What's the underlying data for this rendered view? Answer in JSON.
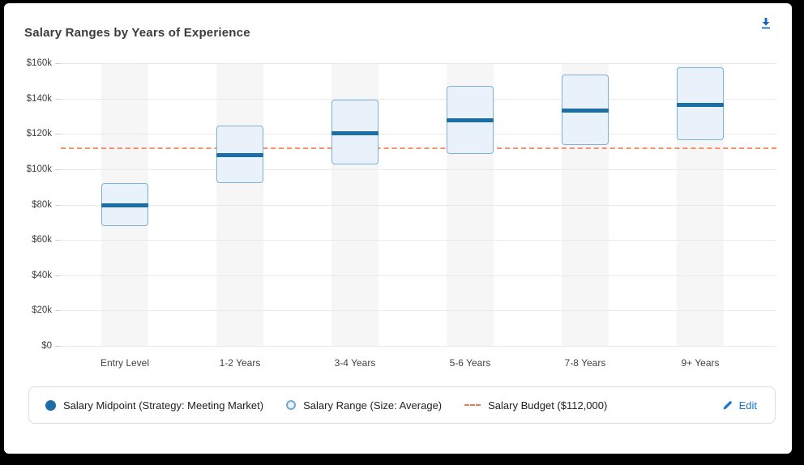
{
  "card": {
    "title": "Salary Ranges by Years of Experience"
  },
  "icons": {
    "download": "download-icon",
    "pencil": "pencil-icon"
  },
  "chart_data": {
    "type": "columnrange",
    "title": "Salary Ranges by Years of Experience",
    "categories": [
      "Entry Level",
      "1-2 Years",
      "3-4 Years",
      "5-6 Years",
      "7-8 Years",
      "9+ Years"
    ],
    "series": [
      {
        "name": "Salary Midpoint (Strategy: Meeting Market)",
        "type": "midpoint",
        "values": [
          80000,
          108500,
          121000,
          128000,
          133500,
          137000
        ],
        "color": "#1b6fa5"
      },
      {
        "name": "Salary Range (Size: Average)",
        "type": "range",
        "ranges": [
          [
            68000,
            92000
          ],
          [
            92200,
            124800
          ],
          [
            102900,
            139200
          ],
          [
            108800,
            147200
          ],
          [
            113500,
            153500
          ],
          [
            116500,
            157500
          ]
        ],
        "fill": "#e9f2fb",
        "border": "#7fb0d6"
      },
      {
        "name": "Salary Budget ($112,000)",
        "type": "line",
        "value": 112000,
        "style": "dashed",
        "color": "#ed7d4f"
      }
    ],
    "yticks": {
      "values": [
        0,
        20000,
        40000,
        60000,
        80000,
        100000,
        120000,
        140000,
        160000
      ],
      "labels": [
        "$0",
        "$20k",
        "$40k",
        "$60k",
        "$80k",
        "$100k",
        "$120k",
        "$140k",
        "$160k"
      ]
    },
    "ylim": [
      0,
      160000
    ],
    "grid": true,
    "legend_position": "bottom"
  },
  "legend": {
    "items": [
      {
        "label": "Salary Midpoint (Strategy: Meeting Market)",
        "icon": "filled-circle",
        "color": "#1b6fa5"
      },
      {
        "label": "Salary Range (Size: Average)",
        "icon": "outlined-circle",
        "fill": "#e9f2fb",
        "border": "#6ea9d4"
      },
      {
        "label": "Salary Budget ($112,000)",
        "icon": "dashed-line",
        "color": "#ed7d4f"
      }
    ],
    "edit_label": "Edit"
  },
  "colors": {
    "midpoint": "#1b6fa5",
    "range_fill": "#e9f2fb",
    "range_border": "#7fb0d6",
    "budget_line": "#f7906a",
    "accent_blue": "#1976d2",
    "download_blue": "#1565c0"
  }
}
